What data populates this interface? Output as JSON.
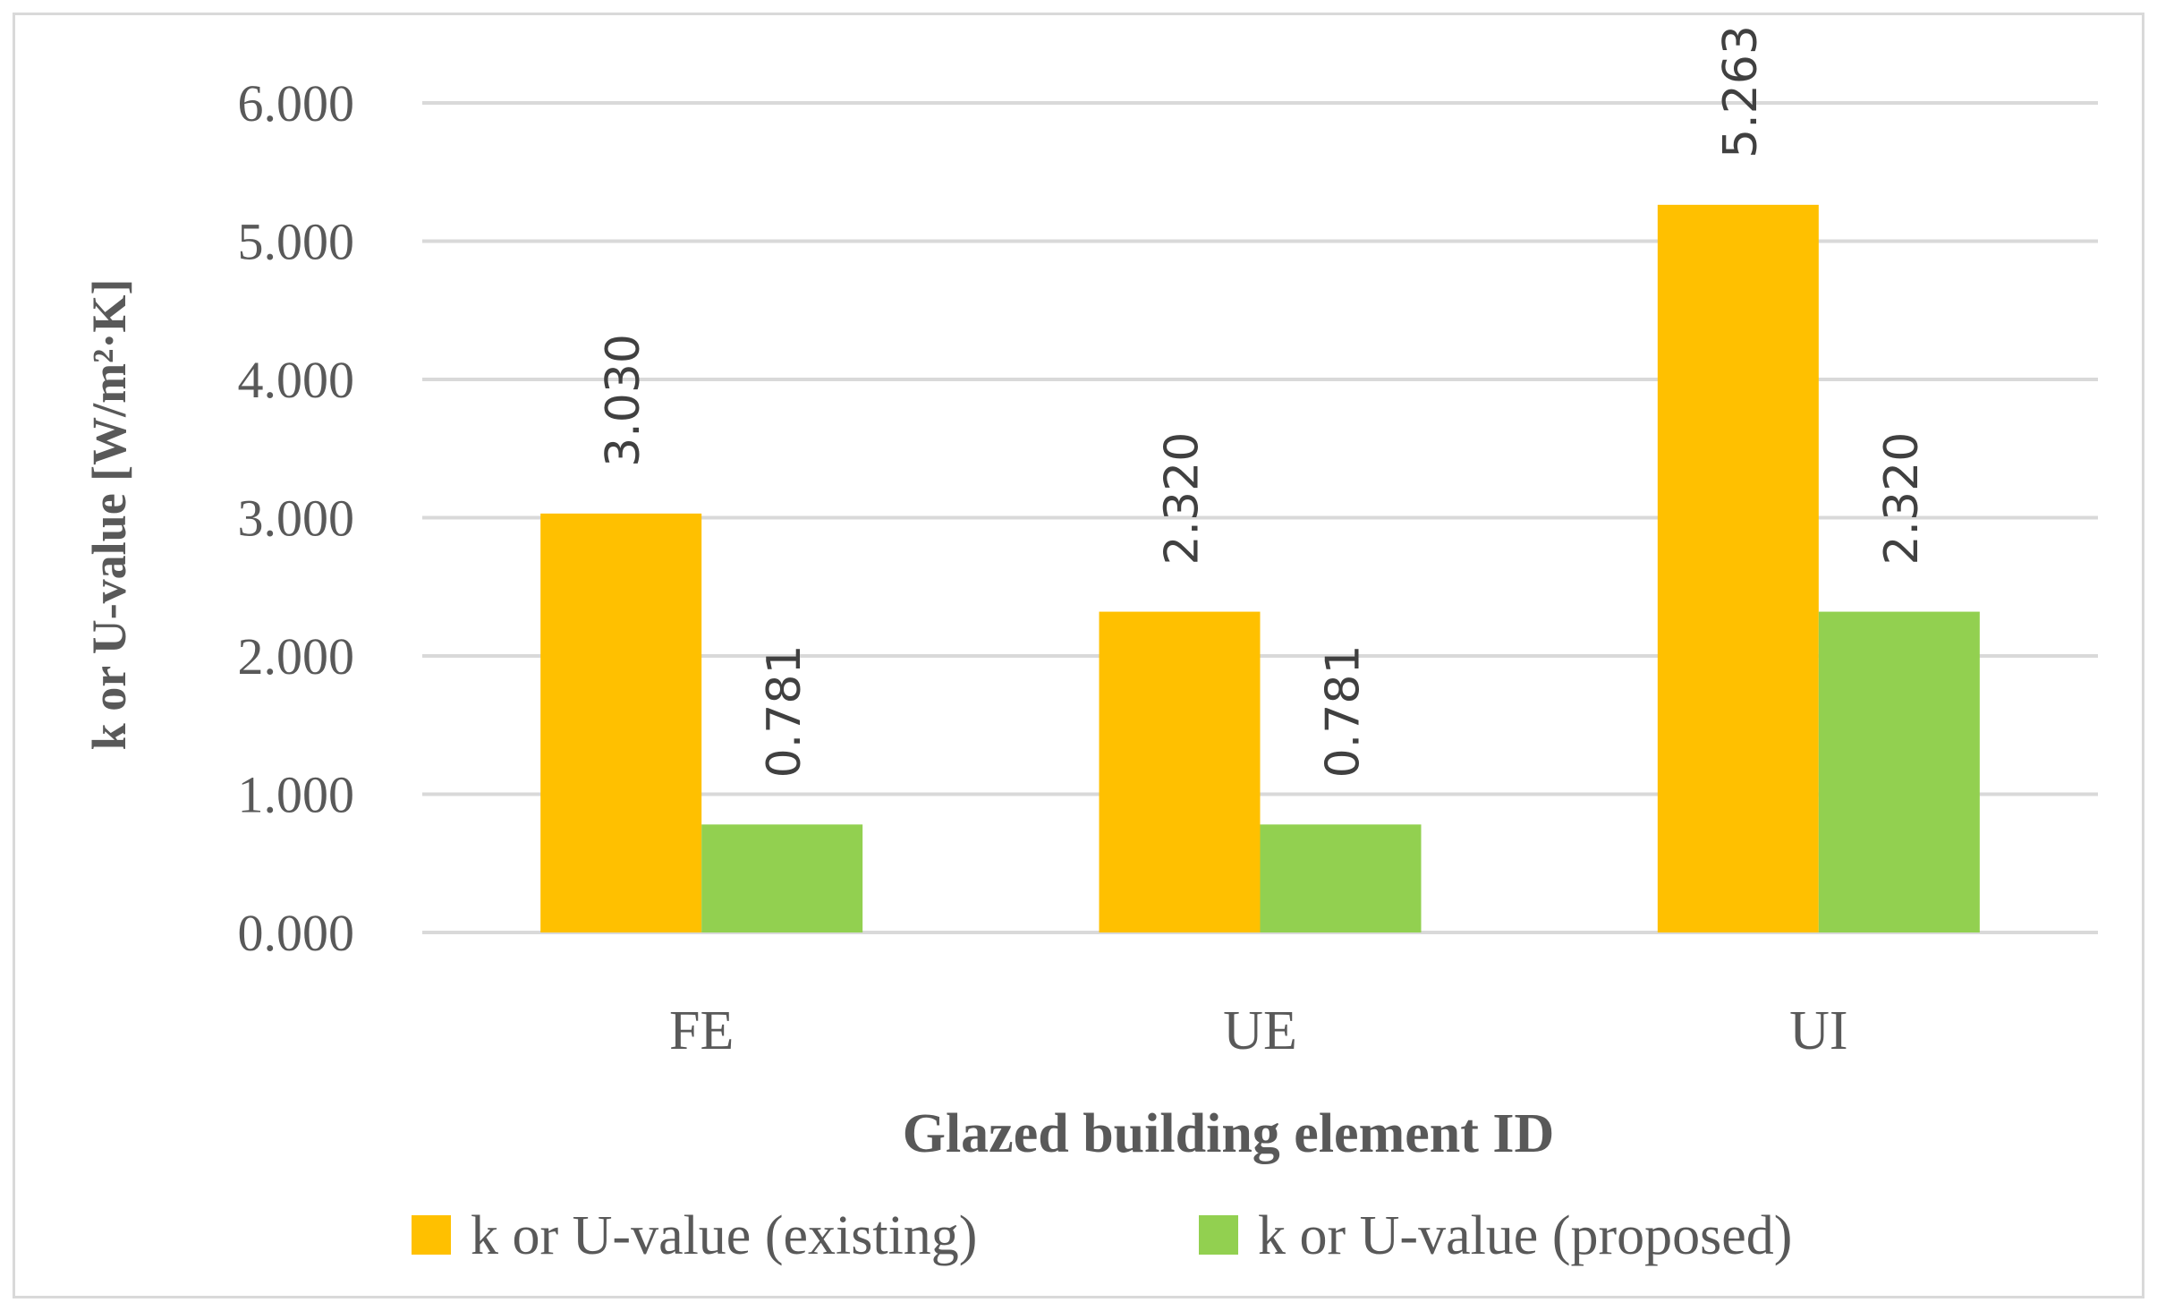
{
  "chart_data": {
    "type": "bar",
    "title": "",
    "xlabel": "Glazed building element ID",
    "ylabel": "k or U-value [W/m²·K]",
    "categories": [
      "FE",
      "UE",
      "UI"
    ],
    "ylim": [
      0,
      6
    ],
    "yticks": [
      0,
      1,
      2,
      3,
      4,
      5,
      6
    ],
    "ytick_labels": [
      "0.000",
      "1.000",
      "2.000",
      "3.000",
      "4.000",
      "5.000",
      "6.000"
    ],
    "grid": true,
    "legend_position": "bottom",
    "series": [
      {
        "name": "k or U-value (existing)",
        "color": "#FFC000",
        "values": [
          3.03,
          2.32,
          5.263
        ],
        "labels": [
          "3.030",
          "2.320",
          "5.263"
        ]
      },
      {
        "name": "k or U-value (proposed)",
        "color": "#92D050",
        "values": [
          0.781,
          0.781,
          2.32
        ],
        "labels": [
          "0.781",
          "0.781",
          "2.320"
        ]
      }
    ]
  }
}
